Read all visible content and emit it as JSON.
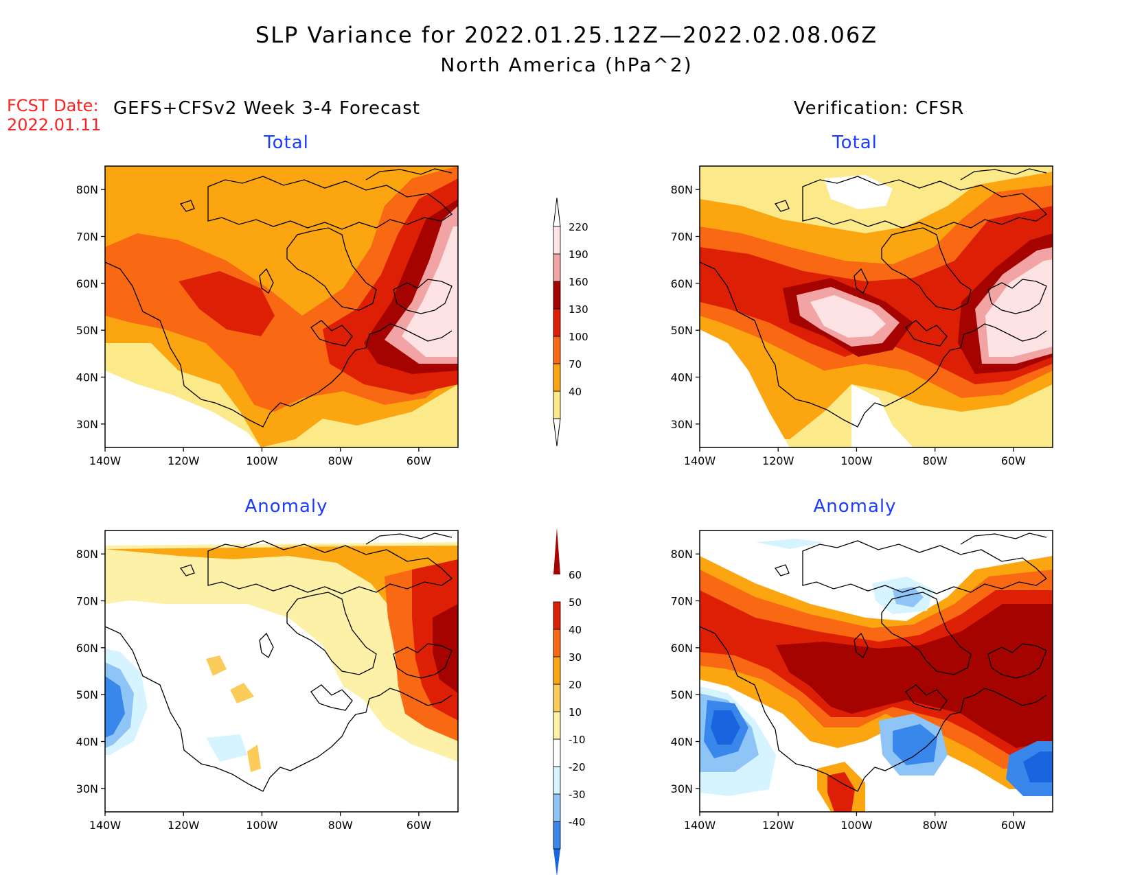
{
  "title": "SLP Variance for 2022.01.25.12Z—2022.02.08.06Z",
  "subtitle": "North America (hPa^2)",
  "fcst_date_label": "FCST Date:",
  "fcst_date_value": "2022.01.11",
  "forecast_heading": "GEFS+CFSv2 Week 3-4 Forecast",
  "verification_heading": "Verification: CFSR",
  "panels": {
    "fcst_total_title": "Total",
    "obs_total_title": "Total",
    "fcst_anom_title": "Anomaly",
    "obs_anom_title": "Anomaly"
  },
  "axes": {
    "lon_labels": [
      "140W",
      "120W",
      "100W",
      "80W",
      "60W"
    ],
    "lat_labels": [
      "80N",
      "70N",
      "60N",
      "50N",
      "40N",
      "30N"
    ],
    "lon_values": [
      -140,
      -120,
      -100,
      -80,
      -60
    ],
    "lat_values": [
      80,
      70,
      60,
      50,
      40,
      30
    ],
    "lon_range": [
      -140,
      -50
    ],
    "lat_range": [
      25,
      85
    ]
  },
  "total_colorbar": {
    "levels": [
      "40",
      "70",
      "100",
      "130",
      "160",
      "190",
      "220"
    ],
    "colors": [
      "#fbe98a",
      "#fba511",
      "#f96812",
      "#dd1f06",
      "#a50300",
      "#f2a3a3",
      "#fde3e3"
    ]
  },
  "anomaly_colorbar": {
    "levels": [
      "-40",
      "-30",
      "-20",
      "-10",
      "10",
      "20",
      "30",
      "40",
      "50",
      "60"
    ],
    "colors": [
      "#1a64e0",
      "#3a87ec",
      "#8fc4f7",
      "#d6f4ff",
      "#ffffff",
      "#fdf1a8",
      "#fbcc5a",
      "#fba511",
      "#f96812",
      "#dd1f06",
      "#a50300"
    ]
  },
  "colors": {
    "title_blue": "#1a3cff",
    "fcst_date_red": "#ff2020"
  }
}
